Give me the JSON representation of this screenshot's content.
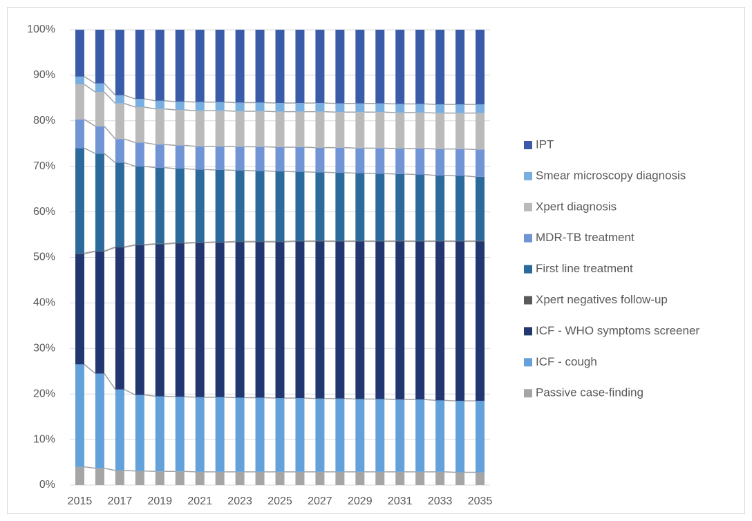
{
  "chart_data": {
    "type": "stacked_bar_100",
    "categories": [
      "2015",
      null,
      "2017",
      null,
      "2019",
      null,
      "2021",
      null,
      "2023",
      null,
      "2025",
      null,
      "2027",
      null,
      "2029",
      null,
      "2031",
      null,
      "2033",
      null,
      "2035"
    ],
    "ylim": [
      0,
      100
    ],
    "yticks": [
      {
        "value": 0,
        "label": "0%"
      },
      {
        "value": 10,
        "label": "10%"
      },
      {
        "value": 20,
        "label": "20%"
      },
      {
        "value": 30,
        "label": "30%"
      },
      {
        "value": 40,
        "label": "40%"
      },
      {
        "value": 50,
        "label": "50%"
      },
      {
        "value": 60,
        "label": "60%"
      },
      {
        "value": 70,
        "label": "70%"
      },
      {
        "value": 80,
        "label": "80%"
      },
      {
        "value": 90,
        "label": "90%"
      },
      {
        "value": 100,
        "label": "100%"
      }
    ],
    "grid": true,
    "legend": "right",
    "series": [
      {
        "name": "Passive case-finding",
        "color": "#a5a5a5",
        "values": [
          4.0,
          3.7,
          3.2,
          3.1,
          3.0,
          3.0,
          2.9,
          2.9,
          2.9,
          2.9,
          2.9,
          2.9,
          2.9,
          2.9,
          2.9,
          2.9,
          2.9,
          2.9,
          2.9,
          2.8,
          2.8
        ]
      },
      {
        "name": "ICF - cough",
        "color": "#62a1da",
        "values": [
          22.5,
          20.8,
          17.8,
          16.7,
          16.5,
          16.4,
          16.4,
          16.4,
          16.3,
          16.3,
          16.2,
          16.2,
          16.1,
          16.1,
          16.0,
          16.0,
          15.9,
          15.9,
          15.7,
          15.7,
          15.7
        ]
      },
      {
        "name": "ICF - WHO symptoms screener",
        "color": "#22376f",
        "values": [
          24.3,
          26.8,
          31.2,
          32.9,
          33.4,
          33.7,
          33.9,
          34.0,
          34.2,
          34.2,
          34.3,
          34.4,
          34.5,
          34.5,
          34.6,
          34.6,
          34.7,
          34.7,
          34.9,
          35.0,
          35.0
        ]
      },
      {
        "name": "Xpert negatives follow-up",
        "color": "#5a5a5a",
        "values": [
          0.1,
          0.1,
          0.1,
          0.1,
          0.1,
          0.1,
          0.1,
          0.1,
          0.1,
          0.1,
          0.1,
          0.1,
          0.1,
          0.1,
          0.1,
          0.1,
          0.1,
          0.1,
          0.1,
          0.1,
          0.1
        ]
      },
      {
        "name": "First line treatment",
        "color": "#2b6a9a",
        "values": [
          23.1,
          21.4,
          18.5,
          17.2,
          16.7,
          16.3,
          16.0,
          15.8,
          15.6,
          15.5,
          15.4,
          15.2,
          15.1,
          15.0,
          14.9,
          14.8,
          14.7,
          14.6,
          14.4,
          14.3,
          14.1
        ]
      },
      {
        "name": "MDR-TB treatment",
        "color": "#7094d4",
        "values": [
          6.3,
          6.0,
          5.2,
          5.2,
          5.1,
          5.1,
          5.1,
          5.2,
          5.2,
          5.3,
          5.3,
          5.4,
          5.4,
          5.5,
          5.5,
          5.6,
          5.6,
          5.7,
          5.8,
          5.9,
          6.0
        ]
      },
      {
        "name": "Xpert diagnosis",
        "color": "#bababa",
        "values": [
          7.7,
          7.5,
          7.8,
          7.8,
          7.8,
          7.8,
          7.8,
          7.8,
          7.8,
          7.8,
          7.8,
          7.8,
          7.9,
          7.8,
          7.9,
          7.9,
          7.9,
          7.9,
          7.9,
          7.9,
          8.0
        ]
      },
      {
        "name": "Smear microscopy diagnosis",
        "color": "#79aee0",
        "values": [
          1.7,
          1.9,
          1.8,
          1.8,
          1.8,
          1.8,
          1.9,
          1.9,
          1.9,
          1.9,
          1.9,
          1.9,
          1.9,
          1.9,
          1.9,
          1.9,
          1.9,
          1.9,
          1.9,
          1.9,
          1.9
        ]
      },
      {
        "name": "IPT",
        "color": "#3a5ba8",
        "values": [
          10.3,
          11.8,
          14.4,
          15.2,
          15.6,
          15.8,
          15.9,
          15.9,
          16.0,
          16.0,
          16.1,
          16.1,
          16.1,
          16.2,
          16.2,
          16.2,
          16.3,
          16.3,
          16.4,
          16.4,
          16.4
        ]
      }
    ]
  }
}
